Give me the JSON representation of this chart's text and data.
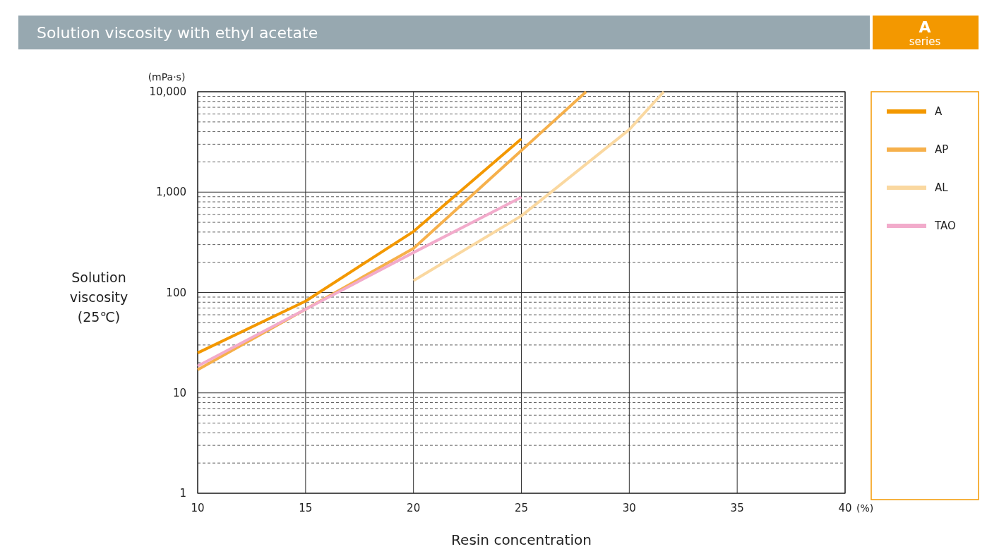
{
  "chart_data": {
    "type": "line",
    "title": "Solution viscosity with ethyl acetate",
    "subtitle": "A series",
    "xlabel": "Resin concentration",
    "ylabel": "Solution viscosity (25℃)",
    "annotations": [
      "(mPa·s)",
      "(%)"
    ],
    "xlim": [
      10,
      40
    ],
    "xticks": [
      10,
      15,
      20,
      25,
      30,
      35,
      40
    ],
    "ylim": [
      1,
      10000
    ],
    "yticks": [
      1,
      10,
      100,
      {
        "value": 1000,
        "label": "1,000"
      },
      {
        "value": 10000,
        "label": "10,000"
      }
    ],
    "log": "y",
    "grid": true,
    "legend": "right",
    "line_style": "solid",
    "series": [
      {
        "name": "A",
        "color": "#f39800",
        "x": [
          10,
          15,
          20,
          25
        ],
        "values": [
          25,
          82,
          405,
          3400
        ]
      },
      {
        "name": "AP",
        "color": "#f6b04b",
        "x": [
          10,
          15,
          20,
          25,
          28
        ],
        "values": [
          17,
          68,
          275,
          2600,
          10000
        ]
      },
      {
        "name": "AL",
        "color": "#fad8a0",
        "x": [
          20,
          25,
          30,
          31.6
        ],
        "values": [
          131,
          580,
          4200,
          10000
        ]
      },
      {
        "name": "TAO",
        "color": "#f2abcb",
        "x": [
          10,
          15,
          20,
          25
        ],
        "values": [
          18.5,
          68,
          250,
          890
        ]
      }
    ]
  }
}
